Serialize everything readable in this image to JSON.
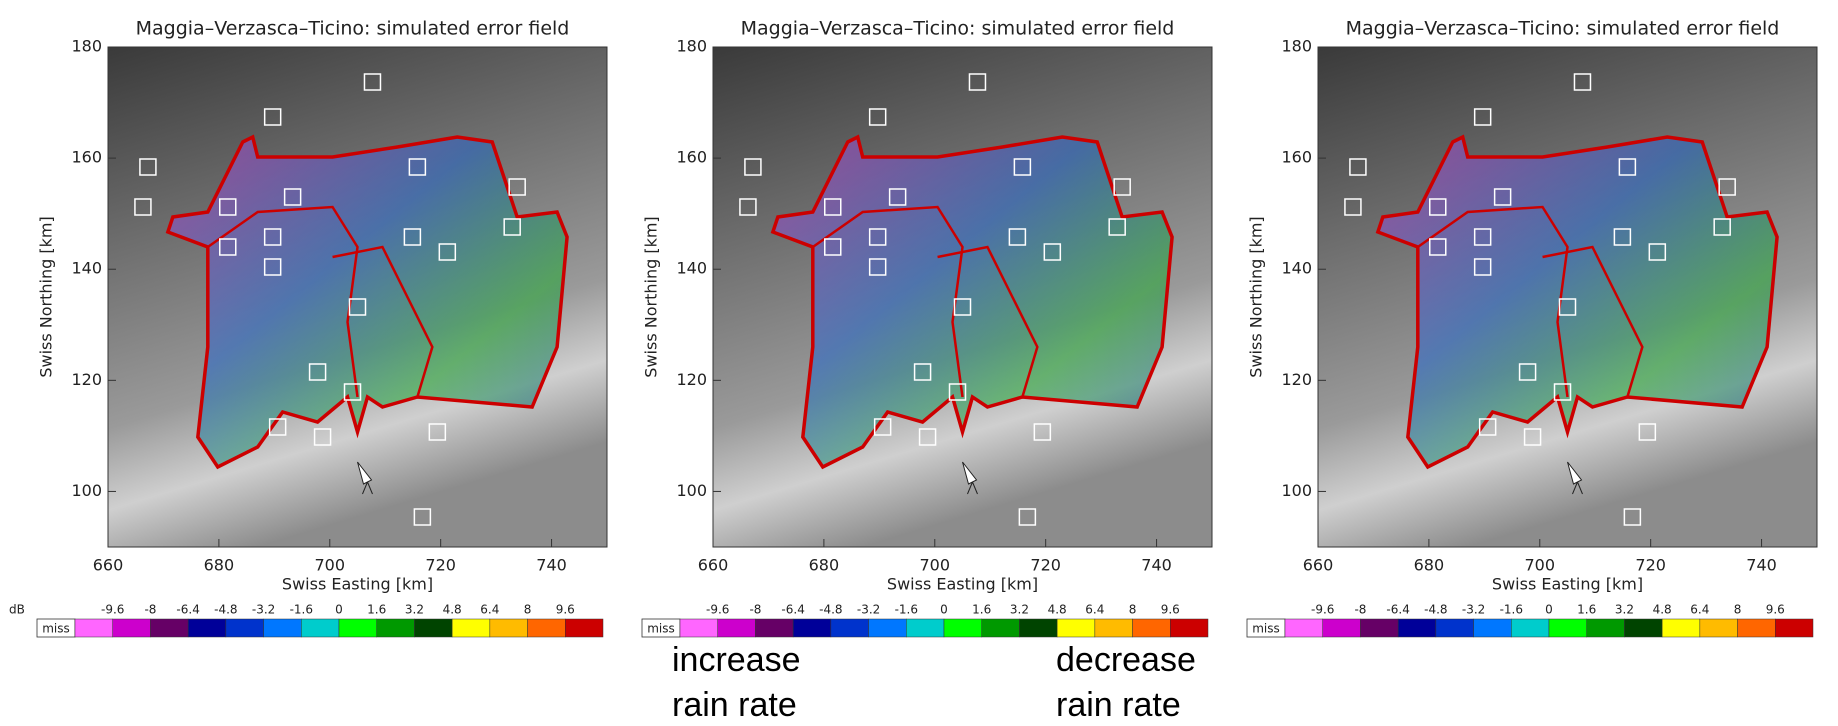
{
  "panels": [
    {
      "title": "Maggia–Verzasca–Ticino: simulated error field",
      "x_axis_label": "Swiss Easting [km]",
      "y_axis_label": "Swiss Northing [km]",
      "xlim": [
        660,
        750
      ],
      "ylim": [
        90,
        180
      ],
      "xticks": [
        660,
        680,
        700,
        720,
        740
      ],
      "yticks": [
        100,
        120,
        140,
        160,
        180
      ]
    },
    {
      "title": "Maggia–Verzasca–Ticino: simulated error field",
      "x_axis_label": "Swiss Easting [km]",
      "y_axis_label": "Swiss Northing [km]",
      "xlim": [
        660,
        750
      ],
      "ylim": [
        90,
        180
      ],
      "xticks": [
        660,
        680,
        700,
        720,
        740
      ],
      "yticks": [
        100,
        120,
        140,
        160,
        180
      ]
    },
    {
      "title": "Maggia–Verzasca–Ticino: simulated error field",
      "x_axis_label": "Swiss Easting [km]",
      "y_axis_label": "Swiss Northing [km]",
      "xlim": [
        660,
        750
      ],
      "ylim": [
        90,
        180
      ],
      "xticks": [
        660,
        680,
        700,
        720,
        740
      ],
      "yticks": [
        100,
        120,
        140,
        160,
        180
      ]
    }
  ],
  "colorbar": {
    "unit": "dB",
    "missing_label": "miss",
    "ticks": [
      -9.6,
      -8,
      -6.4,
      -4.8,
      -3.2,
      -1.6,
      0,
      1.6,
      3.2,
      4.8,
      6.4,
      8,
      9.6
    ],
    "colors": [
      "#ff66ff",
      "#cc00cc",
      "#660066",
      "#000099",
      "#0033cc",
      "#0077ff",
      "#00cccc",
      "#00ff00",
      "#009900",
      "#004400",
      "#ffff00",
      "#ffbb00",
      "#ff6600",
      "#cc0000"
    ]
  },
  "annotations": [
    {
      "lines": [
        "increase",
        "rain rate"
      ]
    },
    {
      "lines": [
        "decrease",
        "rain rate"
      ]
    }
  ]
}
